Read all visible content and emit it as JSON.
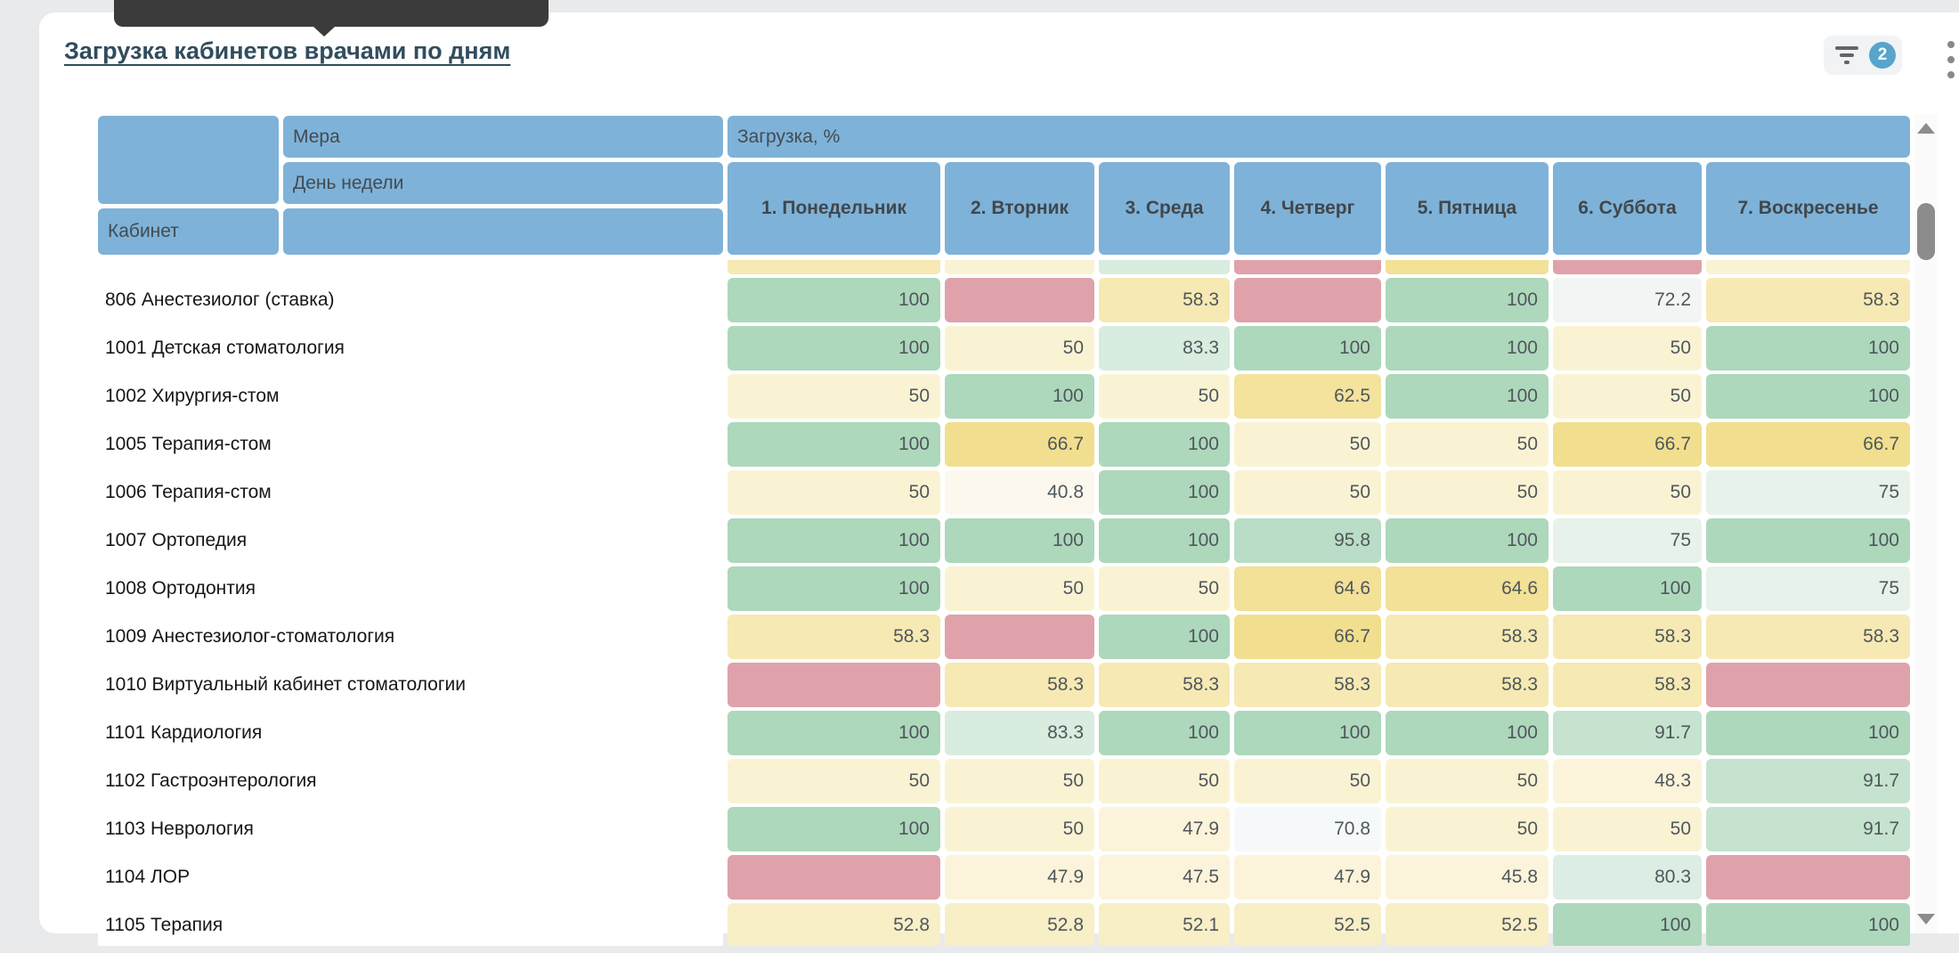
{
  "title": "Загрузка кабинетов врачами по дням",
  "toolbar": {
    "filter_icon": "funnel",
    "filter_badge": "2",
    "menu_icon": "vertical-kebab"
  },
  "scrollbar": {
    "up_icon": "triangle-up",
    "down_icon": "triangle-down"
  },
  "colors": {
    "header_blue": "#7fb2d8",
    "badge_blue": "#57a5cb",
    "title_text": "#314d5d",
    "tooltip_bg": "#3b3b3c",
    "page_bg": "#e9eaeb"
  },
  "palette": {
    "g100": "#add8bc",
    "g95": "#b9ddc6",
    "g91": "#c6e3cf",
    "g83": "#d8ecdf",
    "g80": "#dcede3",
    "g75": "#e7f2ea",
    "w72": "#f3f5f4",
    "w70": "#f6f9fa",
    "w40": "#fdf8ee",
    "y45": "#fbf4da",
    "y50": "#faf3d3",
    "y52": "#f8efc7",
    "y58": "#f6e9b3",
    "y62": "#f3e39d",
    "y64": "#f2e196",
    "y66": "#f1df8f",
    "red": "#dfa2ab"
  },
  "table": {
    "measure_label": "Мера",
    "measure_value": "Загрузка, %",
    "dimension_label": "День недели",
    "corner_label": "Кабинет",
    "days": [
      "1. Понедельник",
      "2. Вторник",
      "3. Среда",
      "4. Четверг",
      "5. Пятница",
      "6. Суббота",
      "7. Воскресенье"
    ],
    "partial_top_row": {
      "colors": [
        "y58",
        "y50",
        "g83",
        "red",
        "y64",
        "red",
        "y50"
      ]
    },
    "rows": [
      {
        "label": "806 Анестезиолог (ставка)",
        "cells": [
          {
            "v": "100",
            "c": "g100"
          },
          {
            "v": "",
            "c": "red"
          },
          {
            "v": "58.3",
            "c": "y58"
          },
          {
            "v": "",
            "c": "red"
          },
          {
            "v": "100",
            "c": "g100"
          },
          {
            "v": "72.2",
            "c": "w72"
          },
          {
            "v": "58.3",
            "c": "y58"
          }
        ]
      },
      {
        "label": "1001 Детская стоматология",
        "cells": [
          {
            "v": "100",
            "c": "g100"
          },
          {
            "v": "50",
            "c": "y50"
          },
          {
            "v": "83.3",
            "c": "g83"
          },
          {
            "v": "100",
            "c": "g100"
          },
          {
            "v": "100",
            "c": "g100"
          },
          {
            "v": "50",
            "c": "y50"
          },
          {
            "v": "100",
            "c": "g100"
          }
        ]
      },
      {
        "label": "1002 Хирургия-стом",
        "cells": [
          {
            "v": "50",
            "c": "y50"
          },
          {
            "v": "100",
            "c": "g100"
          },
          {
            "v": "50",
            "c": "y50"
          },
          {
            "v": "62.5",
            "c": "y62"
          },
          {
            "v": "100",
            "c": "g100"
          },
          {
            "v": "50",
            "c": "y50"
          },
          {
            "v": "100",
            "c": "g100"
          }
        ]
      },
      {
        "label": "1005 Терапия-стом",
        "cells": [
          {
            "v": "100",
            "c": "g100"
          },
          {
            "v": "66.7",
            "c": "y66"
          },
          {
            "v": "100",
            "c": "g100"
          },
          {
            "v": "50",
            "c": "y50"
          },
          {
            "v": "50",
            "c": "y50"
          },
          {
            "v": "66.7",
            "c": "y66"
          },
          {
            "v": "66.7",
            "c": "y66"
          }
        ]
      },
      {
        "label": "1006 Терапия-стом",
        "cells": [
          {
            "v": "50",
            "c": "y50"
          },
          {
            "v": "40.8",
            "c": "w40"
          },
          {
            "v": "100",
            "c": "g100"
          },
          {
            "v": "50",
            "c": "y50"
          },
          {
            "v": "50",
            "c": "y50"
          },
          {
            "v": "50",
            "c": "y50"
          },
          {
            "v": "75",
            "c": "g75"
          }
        ]
      },
      {
        "label": "1007 Ортопедия",
        "cells": [
          {
            "v": "100",
            "c": "g100"
          },
          {
            "v": "100",
            "c": "g100"
          },
          {
            "v": "100",
            "c": "g100"
          },
          {
            "v": "95.8",
            "c": "g95"
          },
          {
            "v": "100",
            "c": "g100"
          },
          {
            "v": "75",
            "c": "g75"
          },
          {
            "v": "100",
            "c": "g100"
          }
        ]
      },
      {
        "label": "1008 Ортодонтия",
        "cells": [
          {
            "v": "100",
            "c": "g100"
          },
          {
            "v": "50",
            "c": "y50"
          },
          {
            "v": "50",
            "c": "y50"
          },
          {
            "v": "64.6",
            "c": "y64"
          },
          {
            "v": "64.6",
            "c": "y64"
          },
          {
            "v": "100",
            "c": "g100"
          },
          {
            "v": "75",
            "c": "g75"
          }
        ]
      },
      {
        "label": "1009 Анестезиолог-стоматология",
        "cells": [
          {
            "v": "58.3",
            "c": "y58"
          },
          {
            "v": "",
            "c": "red"
          },
          {
            "v": "100",
            "c": "g100"
          },
          {
            "v": "66.7",
            "c": "y66"
          },
          {
            "v": "58.3",
            "c": "y58"
          },
          {
            "v": "58.3",
            "c": "y58"
          },
          {
            "v": "58.3",
            "c": "y58"
          }
        ]
      },
      {
        "label": "1010 Виртуальный кабинет стоматологии",
        "cells": [
          {
            "v": "",
            "c": "red"
          },
          {
            "v": "58.3",
            "c": "y58"
          },
          {
            "v": "58.3",
            "c": "y58"
          },
          {
            "v": "58.3",
            "c": "y58"
          },
          {
            "v": "58.3",
            "c": "y58"
          },
          {
            "v": "58.3",
            "c": "y58"
          },
          {
            "v": "",
            "c": "red"
          }
        ]
      },
      {
        "label": "1101 Кардиология",
        "cells": [
          {
            "v": "100",
            "c": "g100"
          },
          {
            "v": "83.3",
            "c": "g83"
          },
          {
            "v": "100",
            "c": "g100"
          },
          {
            "v": "100",
            "c": "g100"
          },
          {
            "v": "100",
            "c": "g100"
          },
          {
            "v": "91.7",
            "c": "g91"
          },
          {
            "v": "100",
            "c": "g100"
          }
        ]
      },
      {
        "label": "1102 Гастроэнтерология",
        "cells": [
          {
            "v": "50",
            "c": "y50"
          },
          {
            "v": "50",
            "c": "y50"
          },
          {
            "v": "50",
            "c": "y50"
          },
          {
            "v": "50",
            "c": "y50"
          },
          {
            "v": "50",
            "c": "y50"
          },
          {
            "v": "48.3",
            "c": "y45"
          },
          {
            "v": "91.7",
            "c": "g91"
          }
        ]
      },
      {
        "label": "1103 Неврология",
        "cells": [
          {
            "v": "100",
            "c": "g100"
          },
          {
            "v": "50",
            "c": "y50"
          },
          {
            "v": "47.9",
            "c": "y45"
          },
          {
            "v": "70.8",
            "c": "w70"
          },
          {
            "v": "50",
            "c": "y50"
          },
          {
            "v": "50",
            "c": "y50"
          },
          {
            "v": "91.7",
            "c": "g91"
          }
        ]
      },
      {
        "label": "1104 ЛОР",
        "cells": [
          {
            "v": "",
            "c": "red"
          },
          {
            "v": "47.9",
            "c": "y45"
          },
          {
            "v": "47.5",
            "c": "y45"
          },
          {
            "v": "47.9",
            "c": "y45"
          },
          {
            "v": "45.8",
            "c": "y45"
          },
          {
            "v": "80.3",
            "c": "g80"
          },
          {
            "v": "",
            "c": "red"
          }
        ]
      },
      {
        "label": "1105 Терапия",
        "cells": [
          {
            "v": "52.8",
            "c": "y52"
          },
          {
            "v": "52.8",
            "c": "y52"
          },
          {
            "v": "52.1",
            "c": "y52"
          },
          {
            "v": "52.5",
            "c": "y52"
          },
          {
            "v": "52.5",
            "c": "y52"
          },
          {
            "v": "100",
            "c": "g100"
          },
          {
            "v": "100",
            "c": "g100"
          }
        ]
      }
    ]
  }
}
